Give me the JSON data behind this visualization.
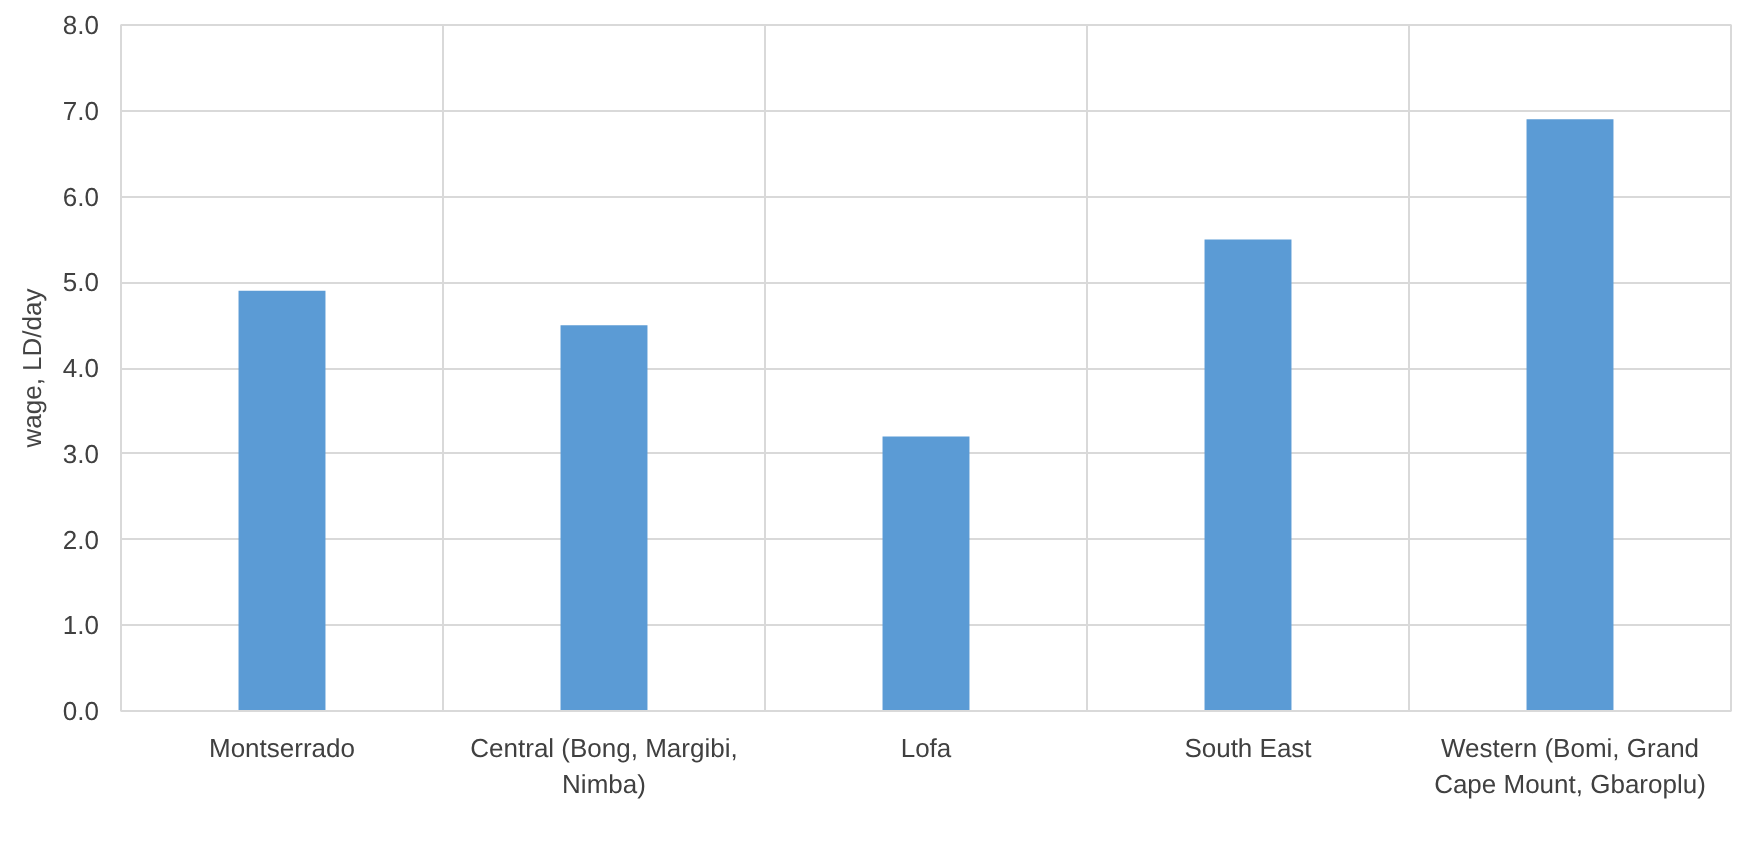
{
  "chart_data": {
    "type": "bar",
    "ylabel": "wage, LD/day",
    "categories": [
      "Montserrado",
      "Central (Bong, Margibi, Nimba)",
      "Lofa",
      "South East",
      "Western (Bomi, Grand Cape Mount, Gbaroplu)"
    ],
    "values": [
      4.9,
      4.5,
      3.2,
      5.5,
      6.9
    ],
    "color": "#5b9bd5",
    "ylim": [
      0,
      8
    ],
    "yticks": [
      {
        "value": 0,
        "label": "0.0"
      },
      {
        "value": 1,
        "label": "1.0"
      },
      {
        "value": 2,
        "label": "2.0"
      },
      {
        "value": 3,
        "label": "3.0"
      },
      {
        "value": 4,
        "label": "4.0"
      },
      {
        "value": 5,
        "label": "5.0"
      },
      {
        "value": 6,
        "label": "6.0"
      },
      {
        "value": 7,
        "label": "7.0"
      },
      {
        "value": 8,
        "label": "8.0"
      }
    ],
    "grid": true
  }
}
